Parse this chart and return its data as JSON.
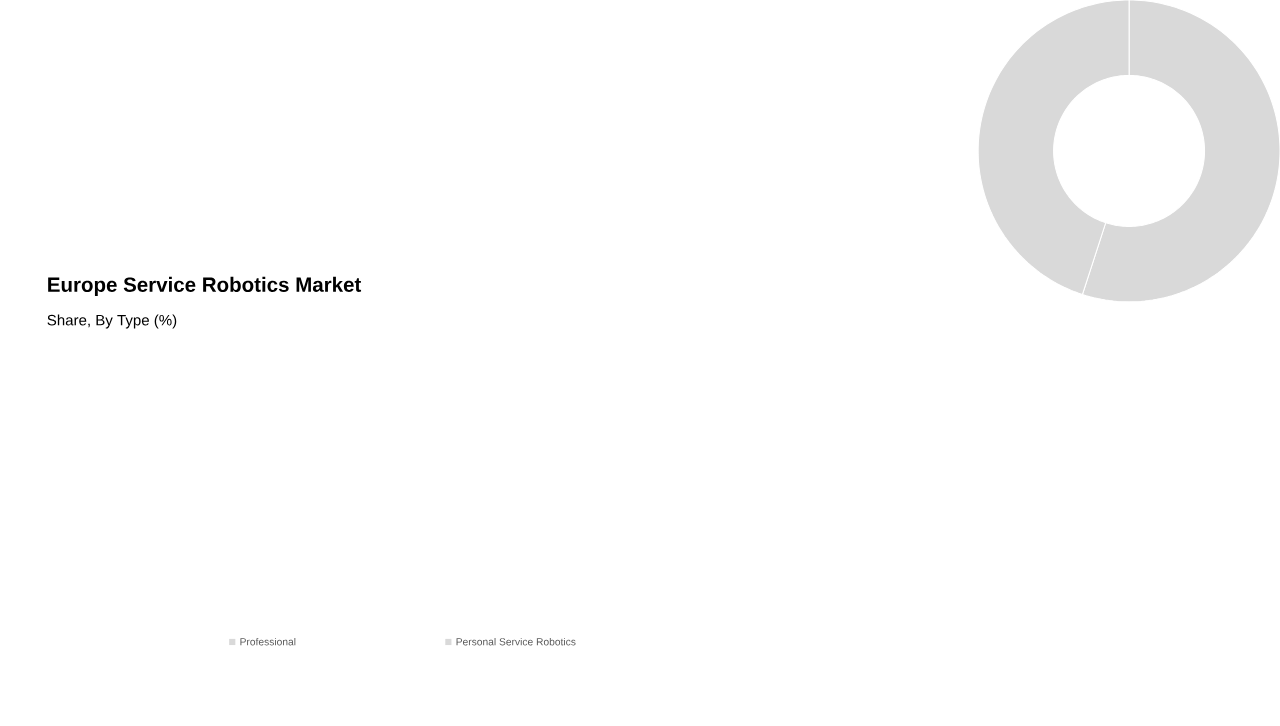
{
  "chart_data": {
    "type": "donut",
    "title": "Europe Service Robotics Market",
    "subtitle": "Share, By Type (%)",
    "categories": [
      "Professional",
      "Personal Service Robotics"
    ],
    "values": [
      55,
      45
    ],
    "colors": [
      "#d9d9d9",
      "#d9d9d9"
    ],
    "legend": "bottom"
  }
}
